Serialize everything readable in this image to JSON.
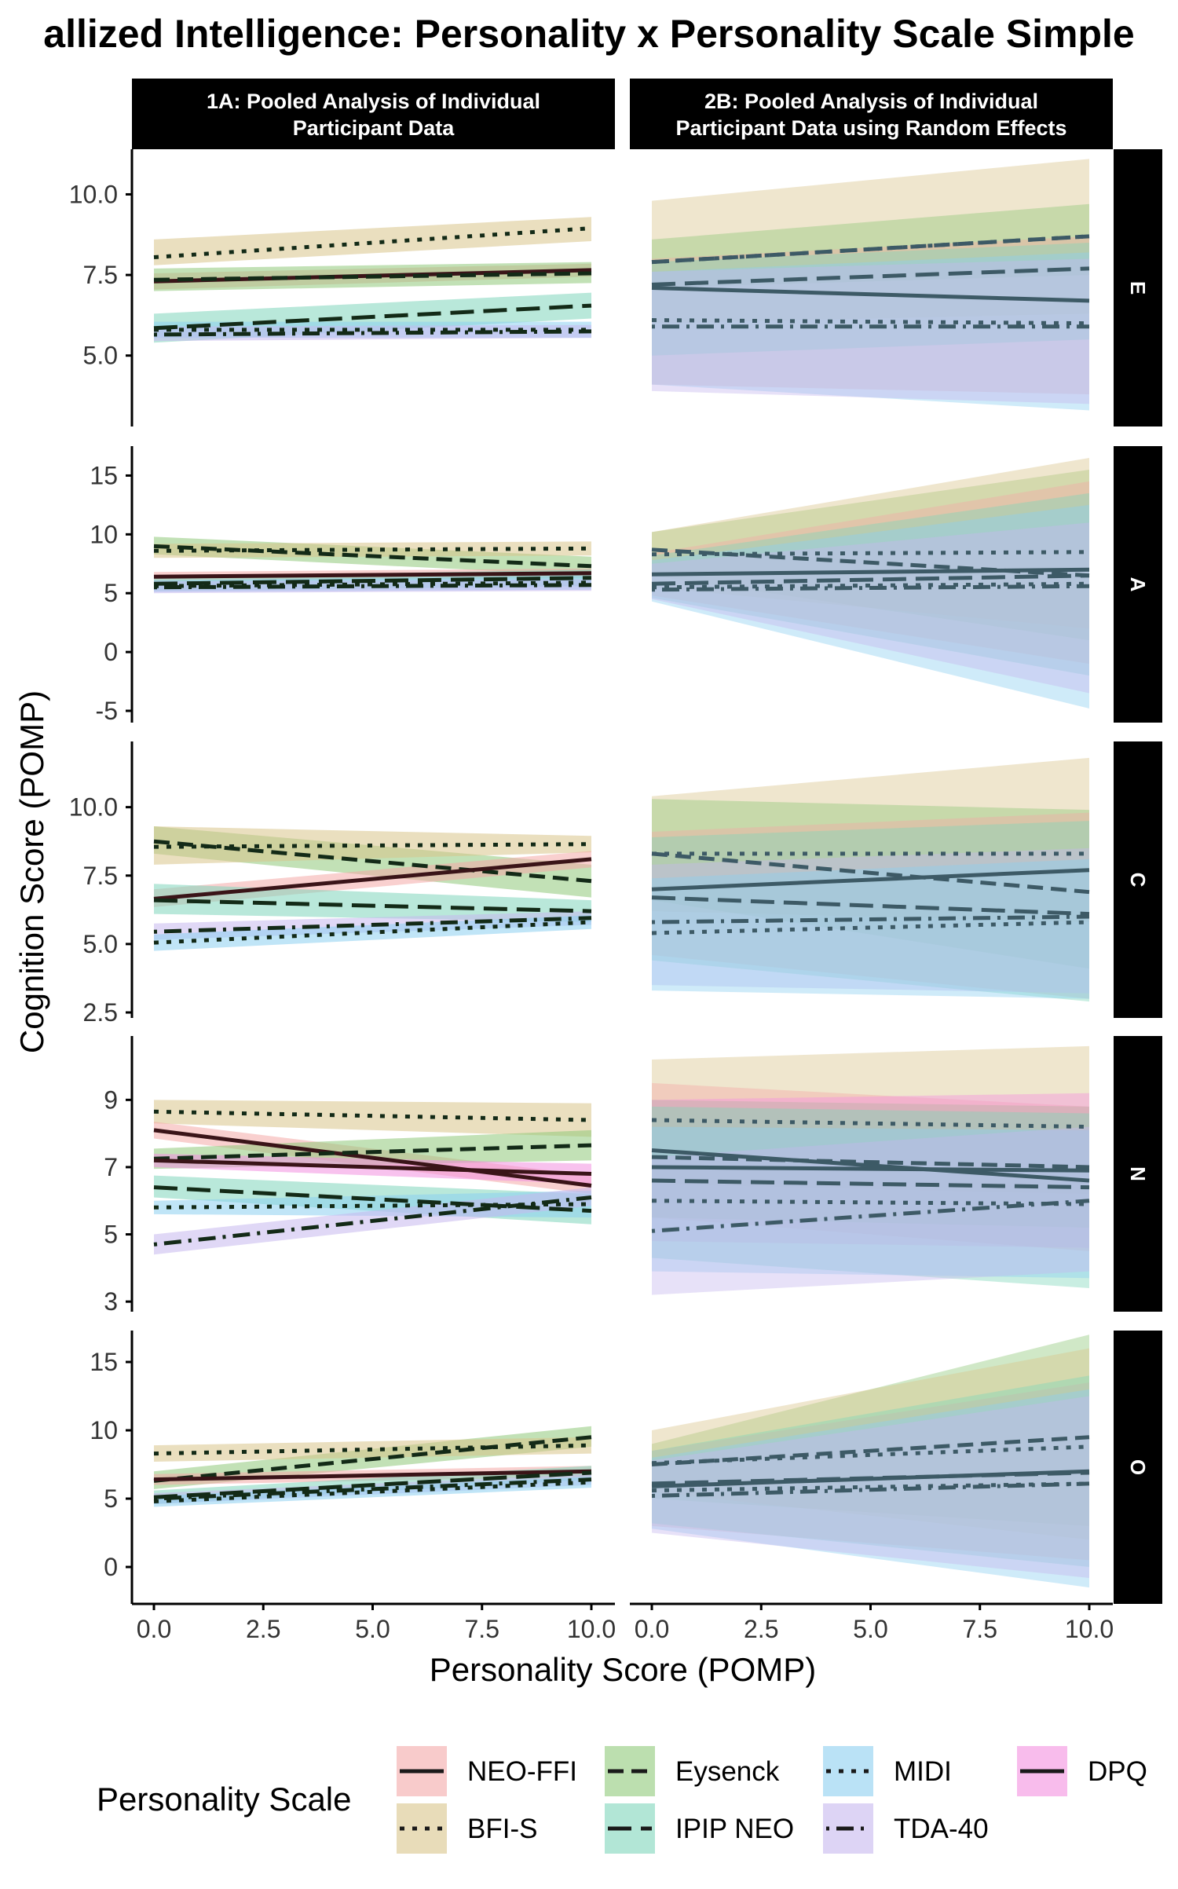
{
  "chart_data": {
    "type": "line",
    "title": "allized Intelligence: Personality x Personality Scale Simple",
    "xlabel": "Personality Score (POMP)",
    "ylabel": "Cognition Score (POMP)",
    "xlim": [
      0,
      10
    ],
    "x_ticks": [
      "0.0",
      "2.5",
      "5.0",
      "7.5",
      "10.0"
    ],
    "legend": {
      "title": "Personality Scale",
      "position": "bottom",
      "entries": [
        {
          "name": "NEO-FFI",
          "fill": "#f4a9a8",
          "dash": "solid"
        },
        {
          "name": "BFI-S",
          "fill": "#d8c48a",
          "dash": "dotted"
        },
        {
          "name": "Eysenck",
          "fill": "#8fc97a",
          "dash": "dashed"
        },
        {
          "name": "IPIP NEO",
          "fill": "#7fd6bb",
          "dash": "longdash"
        },
        {
          "name": "MIDI",
          "fill": "#8ccff0",
          "dash": "dotted"
        },
        {
          "name": "TDA-40",
          "fill": "#c6b8ef",
          "dash": "dotdash"
        },
        {
          "name": "DPQ",
          "fill": "#f38fe0",
          "dash": "solid"
        }
      ]
    },
    "column_strips": [
      "1A: Pooled Analysis of Individual Participant Data",
      "2B: Pooled Analysis of Individual Participant Data using Random Effects"
    ],
    "row_strips": [
      "E",
      "A",
      "C",
      "N",
      "O"
    ],
    "rows": [
      {
        "strip": "E",
        "ylim": [
          2.8,
          11.4
        ],
        "y_ticks": [
          {
            "v": 5,
            "label": "5.0"
          },
          {
            "v": 7.5,
            "label": "7.5"
          },
          {
            "v": 10,
            "label": "10.0"
          }
        ],
        "panels": [
          {
            "series": [
              {
                "name": "BFI-S",
                "y0": 8.05,
                "y1": 8.95,
                "lo0": 7.8,
                "hi0": 8.6,
                "lo1": 8.55,
                "hi1": 9.3
              },
              {
                "name": "NEO-FFI",
                "y0": 7.3,
                "y1": 7.65,
                "lo0": 7.05,
                "hi0": 7.55,
                "lo1": 7.45,
                "hi1": 7.85
              },
              {
                "name": "Eysenck",
                "y0": 7.35,
                "y1": 7.55,
                "lo0": 7.0,
                "hi0": 7.7,
                "lo1": 7.25,
                "hi1": 7.9
              },
              {
                "name": "IPIP NEO",
                "y0": 5.85,
                "y1": 6.55,
                "lo0": 5.4,
                "hi0": 6.3,
                "lo1": 6.15,
                "hi1": 6.95
              },
              {
                "name": "MIDI",
                "y0": 5.8,
                "y1": 5.8,
                "lo0": 5.55,
                "hi0": 6.05,
                "lo1": 5.55,
                "hi1": 6.05
              },
              {
                "name": "TDA-40",
                "y0": 5.65,
                "y1": 5.75,
                "lo0": 5.45,
                "hi0": 5.9,
                "lo1": 5.55,
                "hi1": 5.95
              }
            ]
          },
          {
            "series": [
              {
                "name": "BFI-S",
                "y0": 7.9,
                "y1": 8.7,
                "lo0": 6.0,
                "hi0": 9.8,
                "lo1": 6.3,
                "hi1": 11.1
              },
              {
                "name": "Eysenck",
                "y0": 7.9,
                "y1": 8.7,
                "lo0": 7.1,
                "hi0": 8.6,
                "lo1": 7.5,
                "hi1": 9.7
              },
              {
                "name": "NEO-FFI",
                "y0": 7.1,
                "y1": 6.7,
                "lo0": 4.1,
                "hi0": 8.0,
                "lo1": 3.8,
                "hi1": 8.7
              },
              {
                "name": "IPIP NEO",
                "y0": 7.2,
                "y1": 7.7,
                "lo0": 5.0,
                "hi0": 7.9,
                "lo1": 5.5,
                "hi1": 8.5
              },
              {
                "name": "MIDI",
                "y0": 6.1,
                "y1": 6.0,
                "lo0": 4.1,
                "hi0": 7.6,
                "lo1": 3.3,
                "hi1": 8.2
              },
              {
                "name": "TDA-40",
                "y0": 5.9,
                "y1": 5.9,
                "lo0": 3.9,
                "hi0": 7.6,
                "lo1": 3.5,
                "hi1": 8.0
              }
            ]
          }
        ]
      },
      {
        "strip": "A",
        "ylim": [
          -6,
          17.5
        ],
        "y_ticks": [
          {
            "v": -5,
            "label": "-5"
          },
          {
            "v": 0,
            "label": "0"
          },
          {
            "v": 5,
            "label": "5"
          },
          {
            "v": 10,
            "label": "10"
          },
          {
            "v": 15,
            "label": "15"
          }
        ],
        "panels": [
          {
            "series": [
              {
                "name": "Eysenck",
                "y0": 9.0,
                "y1": 7.3,
                "lo0": 8.3,
                "hi0": 9.8,
                "lo1": 6.5,
                "hi1": 8.1
              },
              {
                "name": "BFI-S",
                "y0": 8.6,
                "y1": 8.8,
                "lo0": 8.0,
                "hi0": 9.2,
                "lo1": 8.2,
                "hi1": 9.4
              },
              {
                "name": "NEO-FFI",
                "y0": 6.4,
                "y1": 6.7,
                "lo0": 6.0,
                "hi0": 6.8,
                "lo1": 6.3,
                "hi1": 7.1
              },
              {
                "name": "IPIP NEO",
                "y0": 5.8,
                "y1": 6.3,
                "lo0": 5.2,
                "hi0": 6.4,
                "lo1": 5.6,
                "hi1": 7.0
              },
              {
                "name": "MIDI",
                "y0": 5.6,
                "y1": 5.9,
                "lo0": 5.1,
                "hi0": 6.1,
                "lo1": 5.3,
                "hi1": 6.5
              },
              {
                "name": "TDA-40",
                "y0": 5.5,
                "y1": 5.7,
                "lo0": 5.0,
                "hi0": 6.0,
                "lo1": 5.2,
                "hi1": 6.2
              }
            ]
          },
          {
            "series": [
              {
                "name": "Eysenck",
                "y0": 8.7,
                "y1": 6.5,
                "lo0": 6.5,
                "hi0": 10.2,
                "lo1": 1.0,
                "hi1": 15.5
              },
              {
                "name": "BFI-S",
                "y0": 8.3,
                "y1": 8.5,
                "lo0": 5.5,
                "hi0": 10.2,
                "lo1": 2.0,
                "hi1": 16.5
              },
              {
                "name": "NEO-FFI",
                "y0": 6.6,
                "y1": 7.0,
                "lo0": 4.8,
                "hi0": 8.4,
                "lo1": -1.0,
                "hi1": 14.5
              },
              {
                "name": "IPIP NEO",
                "y0": 5.8,
                "y1": 6.5,
                "lo0": 4.6,
                "hi0": 8.2,
                "lo1": -2.0,
                "hi1": 13.5
              },
              {
                "name": "MIDI",
                "y0": 5.5,
                "y1": 5.8,
                "lo0": 4.3,
                "hi0": 7.8,
                "lo1": -4.8,
                "hi1": 12.5
              },
              {
                "name": "TDA-40",
                "y0": 5.3,
                "y1": 5.6,
                "lo0": 4.5,
                "hi0": 7.5,
                "lo1": -3.5,
                "hi1": 11.0
              }
            ]
          }
        ]
      },
      {
        "strip": "C",
        "ylim": [
          2.3,
          12.4
        ],
        "y_ticks": [
          {
            "v": 2.5,
            "label": "2.5"
          },
          {
            "v": 5,
            "label": "5.0"
          },
          {
            "v": 7.5,
            "label": "7.5"
          },
          {
            "v": 10,
            "label": "10.0"
          }
        ],
        "panels": [
          {
            "series": [
              {
                "name": "Eysenck",
                "y0": 8.75,
                "y1": 7.3,
                "lo0": 8.3,
                "hi0": 9.3,
                "lo1": 6.7,
                "hi1": 7.9
              },
              {
                "name": "BFI-S",
                "y0": 8.55,
                "y1": 8.65,
                "lo0": 7.9,
                "hi0": 9.3,
                "lo1": 8.35,
                "hi1": 8.95
              },
              {
                "name": "NEO-FFI",
                "y0": 6.65,
                "y1": 8.1,
                "lo0": 6.35,
                "hi0": 7.0,
                "lo1": 7.8,
                "hi1": 8.4
              },
              {
                "name": "IPIP NEO",
                "y0": 6.6,
                "y1": 6.2,
                "lo0": 6.1,
                "hi0": 7.2,
                "lo1": 5.8,
                "hi1": 6.6
              },
              {
                "name": "TDA-40",
                "y0": 5.45,
                "y1": 5.95,
                "lo0": 5.15,
                "hi0": 5.75,
                "lo1": 5.7,
                "hi1": 6.2
              },
              {
                "name": "MIDI",
                "y0": 5.05,
                "y1": 5.8,
                "lo0": 4.75,
                "hi0": 5.35,
                "lo1": 5.55,
                "hi1": 6.05
              }
            ]
          },
          {
            "series": [
              {
                "name": "BFI-S",
                "y0": 8.3,
                "y1": 8.3,
                "lo0": 6.2,
                "hi0": 10.4,
                "lo1": 5.8,
                "hi1": 11.8
              },
              {
                "name": "Eysenck",
                "y0": 8.3,
                "y1": 6.9,
                "lo0": 6.6,
                "hi0": 10.3,
                "lo1": 4.1,
                "hi1": 9.9
              },
              {
                "name": "NEO-FFI",
                "y0": 7.0,
                "y1": 7.7,
                "lo0": 4.6,
                "hi0": 9.1,
                "lo1": 3.0,
                "hi1": 9.8
              },
              {
                "name": "IPIP NEO",
                "y0": 6.7,
                "y1": 6.1,
                "lo0": 4.4,
                "hi0": 8.9,
                "lo1": 2.9,
                "hi1": 9.5
              },
              {
                "name": "TDA-40",
                "y0": 5.8,
                "y1": 6.0,
                "lo0": 3.5,
                "hi0": 7.9,
                "lo1": 3.2,
                "hi1": 8.5
              },
              {
                "name": "MIDI",
                "y0": 5.4,
                "y1": 5.8,
                "lo0": 3.3,
                "hi0": 7.4,
                "lo1": 3.0,
                "hi1": 8.1
              }
            ]
          }
        ]
      },
      {
        "strip": "N",
        "ylim": [
          2.7,
          10.9
        ],
        "y_ticks": [
          {
            "v": 3,
            "label": "3"
          },
          {
            "v": 5,
            "label": "5"
          },
          {
            "v": 7,
            "label": "7"
          },
          {
            "v": 9,
            "label": "9"
          }
        ],
        "panels": [
          {
            "series": [
              {
                "name": "BFI-S",
                "y0": 8.65,
                "y1": 8.4,
                "lo0": 8.3,
                "hi0": 9.0,
                "lo1": 7.9,
                "hi1": 8.9
              },
              {
                "name": "NEO-FFI",
                "y0": 8.1,
                "y1": 6.45,
                "lo0": 7.85,
                "hi0": 8.35,
                "lo1": 6.2,
                "hi1": 6.75
              },
              {
                "name": "Eysenck",
                "y0": 7.25,
                "y1": 7.65,
                "lo0": 6.95,
                "hi0": 7.55,
                "lo1": 7.2,
                "hi1": 8.1
              },
              {
                "name": "DPQ",
                "y0": 7.2,
                "y1": 6.8,
                "lo0": 7.0,
                "hi0": 7.4,
                "lo1": 6.5,
                "hi1": 7.1
              },
              {
                "name": "IPIP NEO",
                "y0": 6.4,
                "y1": 5.7,
                "lo0": 6.1,
                "hi0": 6.75,
                "lo1": 5.3,
                "hi1": 6.2
              },
              {
                "name": "MIDI",
                "y0": 5.8,
                "y1": 5.9,
                "lo0": 5.6,
                "hi0": 6.0,
                "lo1": 5.5,
                "hi1": 6.3
              },
              {
                "name": "TDA-40",
                "y0": 4.7,
                "y1": 6.1,
                "lo0": 4.4,
                "hi0": 5.0,
                "lo1": 5.85,
                "hi1": 6.4
              }
            ]
          },
          {
            "series": [
              {
                "name": "BFI-S",
                "y0": 8.4,
                "y1": 8.2,
                "lo0": 6.5,
                "hi0": 10.2,
                "lo1": 6.2,
                "hi1": 10.6
              },
              {
                "name": "NEO-FFI",
                "y0": 7.5,
                "y1": 6.6,
                "lo0": 5.5,
                "hi0": 9.5,
                "lo1": 4.5,
                "hi1": 8.8
              },
              {
                "name": "Eysenck",
                "y0": 7.3,
                "y1": 7.0,
                "lo0": 5.5,
                "hi0": 9.0,
                "lo1": 5.2,
                "hi1": 8.8
              },
              {
                "name": "DPQ",
                "y0": 7.0,
                "y1": 6.9,
                "lo0": 4.8,
                "hi0": 9.0,
                "lo1": 4.6,
                "hi1": 9.2
              },
              {
                "name": "IPIP NEO",
                "y0": 6.6,
                "y1": 6.4,
                "lo0": 4.3,
                "hi0": 8.8,
                "lo1": 3.4,
                "hi1": 8.6
              },
              {
                "name": "MIDI",
                "y0": 6.0,
                "y1": 5.9,
                "lo0": 3.9,
                "hi0": 8.2,
                "lo1": 3.7,
                "hi1": 8.1
              },
              {
                "name": "TDA-40",
                "y0": 5.1,
                "y1": 6.0,
                "lo0": 3.2,
                "hi0": 7.3,
                "lo1": 3.9,
                "hi1": 8.2
              }
            ]
          }
        ]
      },
      {
        "strip": "O",
        "ylim": [
          -2.7,
          17.3
        ],
        "y_ticks": [
          {
            "v": 0,
            "label": "0"
          },
          {
            "v": 5,
            "label": "5"
          },
          {
            "v": 10,
            "label": "10"
          },
          {
            "v": 15,
            "label": "15"
          }
        ],
        "panels": [
          {
            "series": [
              {
                "name": "Eysenck",
                "y0": 6.3,
                "y1": 9.5,
                "lo0": 5.7,
                "hi0": 7.0,
                "lo1": 8.8,
                "hi1": 10.3
              },
              {
                "name": "BFI-S",
                "y0": 8.3,
                "y1": 8.9,
                "lo0": 7.7,
                "hi0": 8.9,
                "lo1": 8.3,
                "hi1": 9.5
              },
              {
                "name": "NEO-FFI",
                "y0": 6.4,
                "y1": 7.0,
                "lo0": 6.0,
                "hi0": 6.8,
                "lo1": 6.6,
                "hi1": 7.4
              },
              {
                "name": "IPIP NEO",
                "y0": 5.1,
                "y1": 6.9,
                "lo0": 4.6,
                "hi0": 5.6,
                "lo1": 6.4,
                "hi1": 7.4
              },
              {
                "name": "TDA-40",
                "y0": 5.0,
                "y1": 6.4,
                "lo0": 4.6,
                "hi0": 5.4,
                "lo1": 6.0,
                "hi1": 6.8
              },
              {
                "name": "MIDI",
                "y0": 4.8,
                "y1": 6.2,
                "lo0": 4.4,
                "hi0": 5.2,
                "lo1": 5.8,
                "hi1": 6.6
              }
            ]
          },
          {
            "series": [
              {
                "name": "Eysenck",
                "y0": 7.5,
                "y1": 9.5,
                "lo0": 5.0,
                "hi0": 9.0,
                "lo1": 3.0,
                "hi1": 17.0
              },
              {
                "name": "BFI-S",
                "y0": 7.6,
                "y1": 8.8,
                "lo0": 5.5,
                "hi0": 10.0,
                "lo1": 2.0,
                "hi1": 16.0
              },
              {
                "name": "NEO-FFI",
                "y0": 5.9,
                "y1": 7.0,
                "lo0": 3.0,
                "hi0": 8.5,
                "lo1": 0.5,
                "hi1": 13.5
              },
              {
                "name": "IPIP NEO",
                "y0": 6.1,
                "y1": 6.9,
                "lo0": 3.2,
                "hi0": 8.5,
                "lo1": 0.0,
                "hi1": 14.0
              },
              {
                "name": "MIDI",
                "y0": 5.6,
                "y1": 6.1,
                "lo0": 2.8,
                "hi0": 8.0,
                "lo1": -1.5,
                "hi1": 13.0
              },
              {
                "name": "TDA-40",
                "y0": 5.2,
                "y1": 6.1,
                "lo0": 2.5,
                "hi0": 7.8,
                "lo1": -0.8,
                "hi1": 12.5
              }
            ]
          }
        ]
      }
    ]
  }
}
